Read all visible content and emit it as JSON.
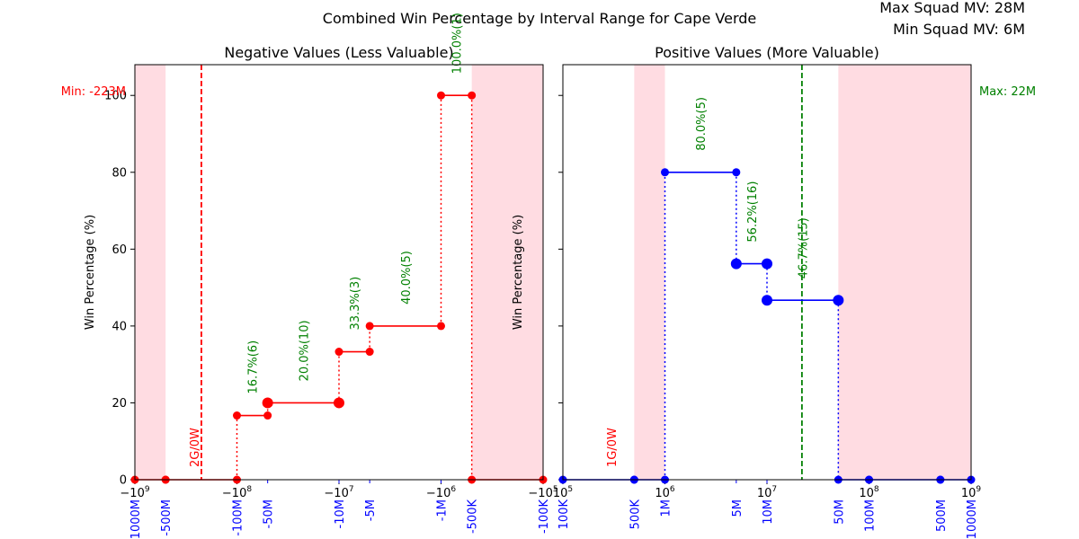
{
  "chart_data": {
    "type": "line",
    "title": "Combined Win Percentage by Interval Range for Cape Verde",
    "info": {
      "max_line": "Max Squad MV: 28M",
      "min_line": "Min Squad MV: 6M"
    },
    "colors": {
      "neg": "#ff0000",
      "pos": "#0000ff",
      "label": "#008000",
      "shade": "#ffc0cb",
      "blue_tick": "#0000ff"
    },
    "panels": [
      {
        "id": "neg",
        "title": "Negative Values (Less Valuable)",
        "ylabel": "Win Percentage (%)",
        "ylim": [
          0,
          108
        ],
        "yticks": [
          "0",
          "20",
          "40",
          "60",
          "80",
          "100"
        ],
        "xscale": "symlog-negative",
        "xlim": [
          -1000000000,
          -100000
        ],
        "decade_ticks": [
          {
            "v": -1000000000,
            "base": "−10",
            "exp": "9"
          },
          {
            "v": -100000000,
            "base": "−10",
            "exp": "8"
          },
          {
            "v": -10000000,
            "base": "−10",
            "exp": "7"
          },
          {
            "v": -1000000,
            "base": "−10",
            "exp": "6"
          },
          {
            "v": -100000,
            "base": "−10",
            "exp": "5"
          }
        ],
        "interval_ticks": [
          {
            "v": -1000000000,
            "label": "-1000M"
          },
          {
            "v": -500000000,
            "label": "-500M"
          },
          {
            "v": -100000000,
            "label": "-100M"
          },
          {
            "v": -50000000,
            "label": "-50M"
          },
          {
            "v": -10000000,
            "label": "-10M"
          },
          {
            "v": -5000000,
            "label": "-5M"
          },
          {
            "v": -1000000,
            "label": "-1M"
          },
          {
            "v": -500000,
            "label": "-500K"
          },
          {
            "v": -100000,
            "label": "-100K"
          }
        ],
        "shaded": [
          [
            -1000000000,
            -500000000
          ],
          [
            -500000,
            -100000
          ]
        ],
        "ref_line": {
          "v": -223000000,
          "label": "Min: -223M"
        },
        "no_data_label": {
          "v": -223000000,
          "text": "2G/0W"
        },
        "steps": [
          {
            "x0": -1000000000,
            "x1": -500000000,
            "y": 0,
            "label": ""
          },
          {
            "x0": -500000000,
            "x1": -100000000,
            "y": 0,
            "label": ""
          },
          {
            "x0": -100000000,
            "x1": -50000000,
            "y": 16.7,
            "label": "16.7%(6)"
          },
          {
            "x0": -50000000,
            "x1": -10000000,
            "y": 20.0,
            "label": "20.0%(10)"
          },
          {
            "x0": -10000000,
            "x1": -5000000,
            "y": 33.3,
            "label": "33.3%(3)"
          },
          {
            "x0": -5000000,
            "x1": -1000000,
            "y": 40.0,
            "label": "40.0%(5)"
          },
          {
            "x0": -1000000,
            "x1": -500000,
            "y": 100.0,
            "label": "100.0%(1)"
          },
          {
            "x0": -500000,
            "x1": -100000,
            "y": 0,
            "label": ""
          }
        ]
      },
      {
        "id": "pos",
        "title": "Positive Values (More Valuable)",
        "ylabel": "Win Percentage (%)",
        "ylim": [
          0,
          108
        ],
        "yticks": [
          "0",
          "20",
          "40",
          "60",
          "80",
          "100"
        ],
        "xscale": "log",
        "xlim": [
          100000,
          1000000000
        ],
        "decade_ticks": [
          {
            "v": 100000,
            "base": "10",
            "exp": "5"
          },
          {
            "v": 1000000,
            "base": "10",
            "exp": "6"
          },
          {
            "v": 10000000,
            "base": "10",
            "exp": "7"
          },
          {
            "v": 100000000,
            "base": "10",
            "exp": "8"
          },
          {
            "v": 1000000000,
            "base": "10",
            "exp": "9"
          }
        ],
        "interval_ticks": [
          {
            "v": 100000,
            "label": "100K"
          },
          {
            "v": 500000,
            "label": "500K"
          },
          {
            "v": 1000000,
            "label": "1M"
          },
          {
            "v": 5000000,
            "label": "5M"
          },
          {
            "v": 10000000,
            "label": "10M"
          },
          {
            "v": 50000000,
            "label": "50M"
          },
          {
            "v": 100000000,
            "label": "100M"
          },
          {
            "v": 500000000,
            "label": "500M"
          },
          {
            "v": 1000000000,
            "label": "1000M"
          }
        ],
        "shaded": [
          [
            500000,
            1000000
          ],
          [
            50000000,
            1000000000
          ]
        ],
        "ref_line": {
          "v": 22000000,
          "label": "Max: 22M"
        },
        "no_data_label": {
          "v": 350000,
          "text": "1G/0W"
        },
        "steps": [
          {
            "x0": 100000,
            "x1": 500000,
            "y": 0,
            "label": ""
          },
          {
            "x0": 500000,
            "x1": 1000000,
            "y": 0,
            "label": ""
          },
          {
            "x0": 1000000,
            "x1": 5000000,
            "y": 80.0,
            "label": "80.0%(5)"
          },
          {
            "x0": 5000000,
            "x1": 10000000,
            "y": 56.2,
            "label": "56.2%(16)"
          },
          {
            "x0": 10000000,
            "x1": 50000000,
            "y": 46.7,
            "label": "46.7%(15)"
          },
          {
            "x0": 50000000,
            "x1": 100000000,
            "y": 0,
            "label": ""
          },
          {
            "x0": 100000000,
            "x1": 500000000,
            "y": 0,
            "label": ""
          },
          {
            "x0": 500000000,
            "x1": 1000000000,
            "y": 0,
            "label": ""
          }
        ]
      }
    ]
  }
}
